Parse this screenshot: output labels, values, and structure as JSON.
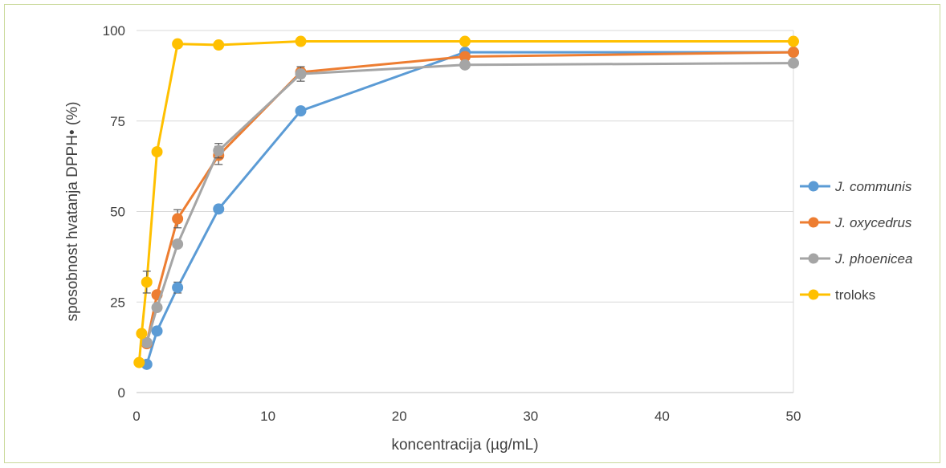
{
  "chart_data": {
    "type": "line",
    "xlabel": "koncentracija (µg/mL)",
    "ylabel": "sposobnost hvatanja DPPH• (%)",
    "xlim": [
      0,
      50
    ],
    "ylim": [
      0,
      100
    ],
    "xticks": [
      0,
      10,
      20,
      30,
      40,
      50
    ],
    "yticks": [
      0,
      25,
      50,
      75,
      100
    ],
    "grid": "horizontal",
    "legend_position": "right",
    "series": [
      {
        "name": "J. communis",
        "italic": true,
        "color": "#5b9bd5",
        "x": [
          0.78,
          1.56,
          3.125,
          6.25,
          12.5,
          25,
          50
        ],
        "y": [
          7.8,
          17.0,
          29.0,
          50.7,
          77.8,
          94.0,
          94.0
        ],
        "err": [
          0,
          0,
          1.5,
          0,
          0,
          0,
          0
        ]
      },
      {
        "name": "J. oxycedrus",
        "italic": true,
        "color": "#ed7d31",
        "x": [
          0.78,
          1.56,
          3.125,
          6.25,
          12.5,
          25,
          50
        ],
        "y": [
          13.5,
          27.0,
          48.0,
          65.5,
          88.5,
          92.8,
          94.0
        ],
        "err": [
          0,
          0,
          2.5,
          2.5,
          1.5,
          0,
          0
        ]
      },
      {
        "name": "J. phoenicea",
        "italic": true,
        "color": "#a5a5a5",
        "x": [
          0.78,
          1.56,
          3.125,
          6.25,
          12.5,
          25,
          50
        ],
        "y": [
          13.8,
          23.5,
          41.0,
          66.8,
          88.0,
          90.5,
          91.0
        ],
        "err": [
          0,
          0,
          0,
          2.0,
          2.0,
          0,
          0
        ]
      },
      {
        "name": "troloks",
        "italic": false,
        "color": "#ffc000",
        "x": [
          0.2,
          0.39,
          0.78,
          1.56,
          3.125,
          6.25,
          12.5,
          25,
          50
        ],
        "y": [
          8.3,
          16.3,
          30.5,
          66.5,
          96.3,
          96.0,
          97.0,
          97.0,
          97.0
        ],
        "err": [
          0,
          0,
          3.0,
          0,
          0,
          0,
          0,
          0,
          0
        ]
      }
    ]
  }
}
